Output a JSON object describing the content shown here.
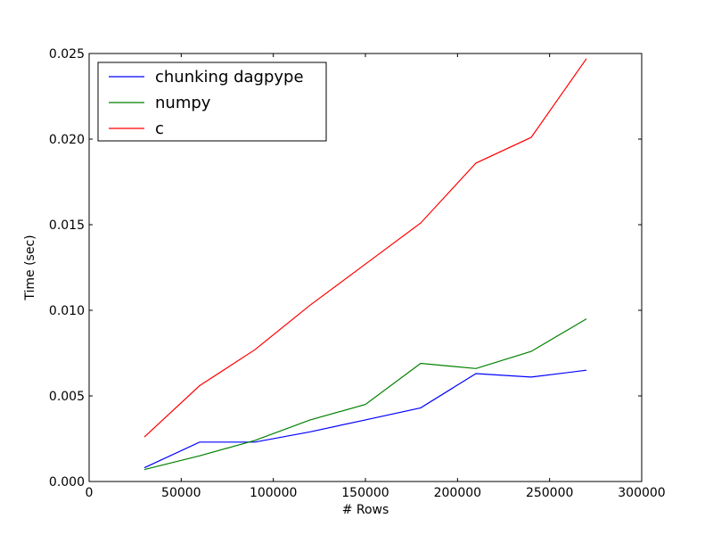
{
  "chart_data": {
    "type": "line",
    "title": "",
    "xlabel": "# Rows",
    "ylabel": "Time (sec)",
    "xlim": [
      0,
      300000
    ],
    "ylim": [
      0,
      0.025
    ],
    "x_ticks": [
      0,
      50000,
      100000,
      150000,
      200000,
      250000,
      300000
    ],
    "x_tick_labels": [
      "0",
      "50000",
      "100000",
      "150000",
      "200000",
      "250000",
      "300000"
    ],
    "y_ticks": [
      0,
      0.005,
      0.01,
      0.015,
      0.02,
      0.025
    ],
    "y_tick_labels": [
      "0.000",
      "0.005",
      "0.010",
      "0.015",
      "0.020",
      "0.025"
    ],
    "grid": false,
    "legend_position": "top-left",
    "x": [
      30000,
      60000,
      90000,
      120000,
      150000,
      180000,
      210000,
      240000,
      270000
    ],
    "series": [
      {
        "name": "chunking dagpype",
        "color": "#0000ff",
        "values": [
          0.0008,
          0.0023,
          0.0023,
          0.0029,
          0.0036,
          0.0043,
          0.0063,
          0.0061,
          0.0065
        ]
      },
      {
        "name": "numpy",
        "color": "#008000",
        "values": [
          0.0007,
          0.0015,
          0.0024,
          0.0036,
          0.0045,
          0.0069,
          0.0066,
          0.0076,
          0.0095
        ]
      },
      {
        "name": "c",
        "color": "#ff0000",
        "values": [
          0.0026,
          0.0056,
          0.0077,
          0.0103,
          0.0127,
          0.0151,
          0.0186,
          0.0201,
          0.0247
        ]
      }
    ]
  }
}
